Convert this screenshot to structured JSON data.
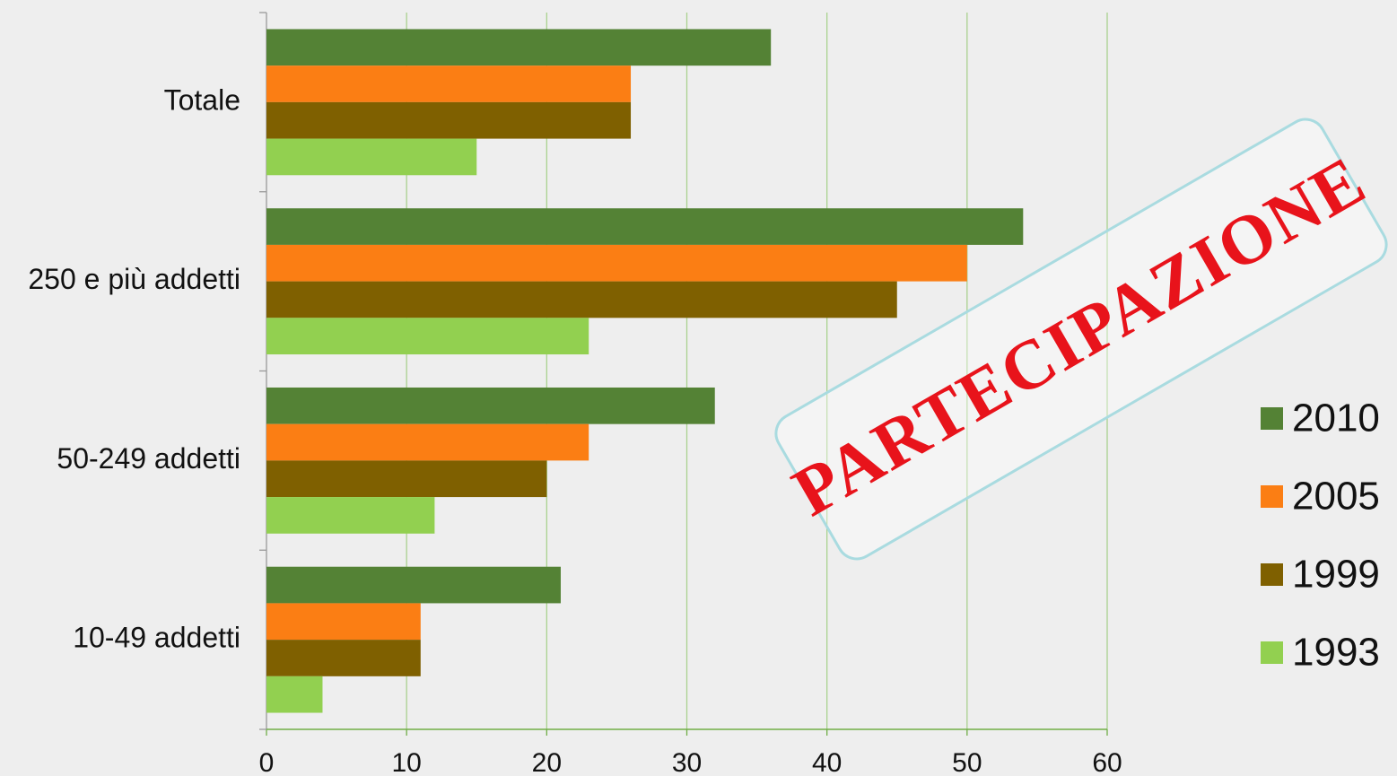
{
  "chart_data": {
    "type": "bar",
    "orientation": "horizontal",
    "categories": [
      "Totale",
      "250 e più addetti",
      "50-249 addetti",
      "10-49 addetti"
    ],
    "series": [
      {
        "name": "2010",
        "color": "#548235",
        "values": [
          36,
          54,
          32,
          21
        ]
      },
      {
        "name": "2005",
        "color": "#fb7e14",
        "values": [
          26,
          50,
          23,
          11
        ]
      },
      {
        "name": "1999",
        "color": "#7f6000",
        "values": [
          26,
          45,
          20,
          11
        ]
      },
      {
        "name": "1993",
        "color": "#92d050",
        "values": [
          15,
          23,
          12,
          4
        ]
      }
    ],
    "xlim": [
      0,
      60
    ],
    "xticks": [
      0,
      10,
      20,
      30,
      40,
      50,
      60
    ],
    "grid": true,
    "legend": "right",
    "annotation": "PARTECIPAZIONE"
  }
}
